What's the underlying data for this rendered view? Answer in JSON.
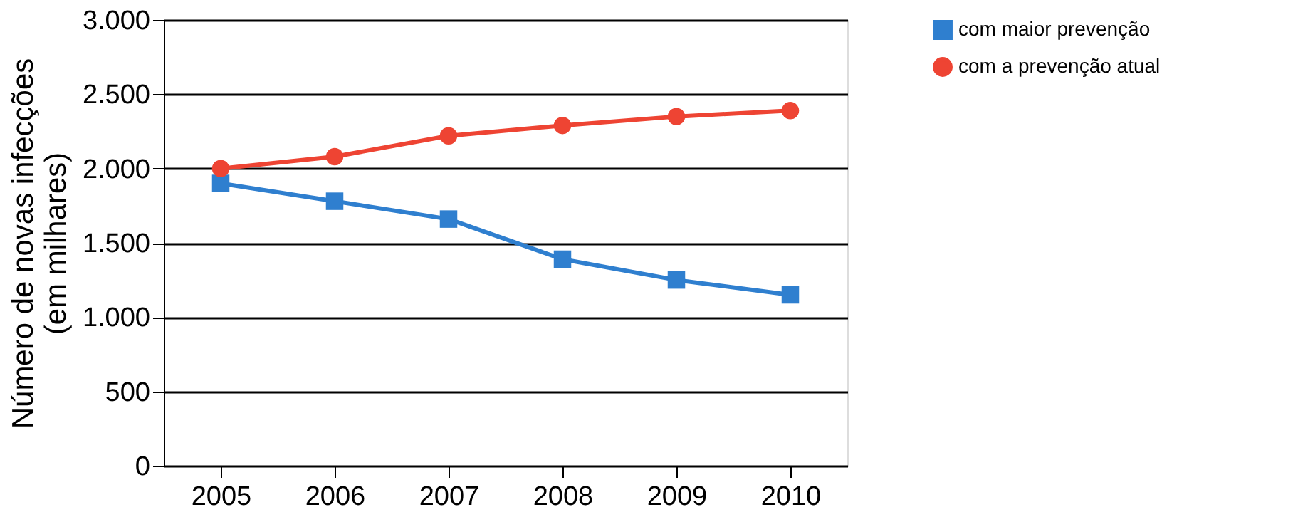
{
  "chart_data": {
    "type": "line",
    "ylabel": "Número de novas infecções\n(em milhares)",
    "categories": [
      "2005",
      "2006",
      "2007",
      "2008",
      "2009",
      "2010"
    ],
    "series": [
      {
        "name": "com maior prevenção",
        "color": "#2f7fcf",
        "marker": "square",
        "values": [
          1900,
          1780,
          1660,
          1390,
          1250,
          1150
        ]
      },
      {
        "name": "com a prevenção atual",
        "color": "#ee4433",
        "marker": "circle",
        "values": [
          2000,
          2080,
          2220,
          2290,
          2350,
          2390
        ]
      }
    ],
    "ylim": [
      0,
      3000
    ],
    "yticks": [
      {
        "value": 0,
        "label": "0"
      },
      {
        "value": 500,
        "label": "500"
      },
      {
        "value": 1000,
        "label": "1.000"
      },
      {
        "value": 1500,
        "label": "1.500"
      },
      {
        "value": 2000,
        "label": "2.000"
      },
      {
        "value": 2500,
        "label": "2.500"
      },
      {
        "value": 3000,
        "label": "3.000"
      }
    ],
    "grid": "y",
    "legend": "right",
    "line_style": "solid"
  }
}
